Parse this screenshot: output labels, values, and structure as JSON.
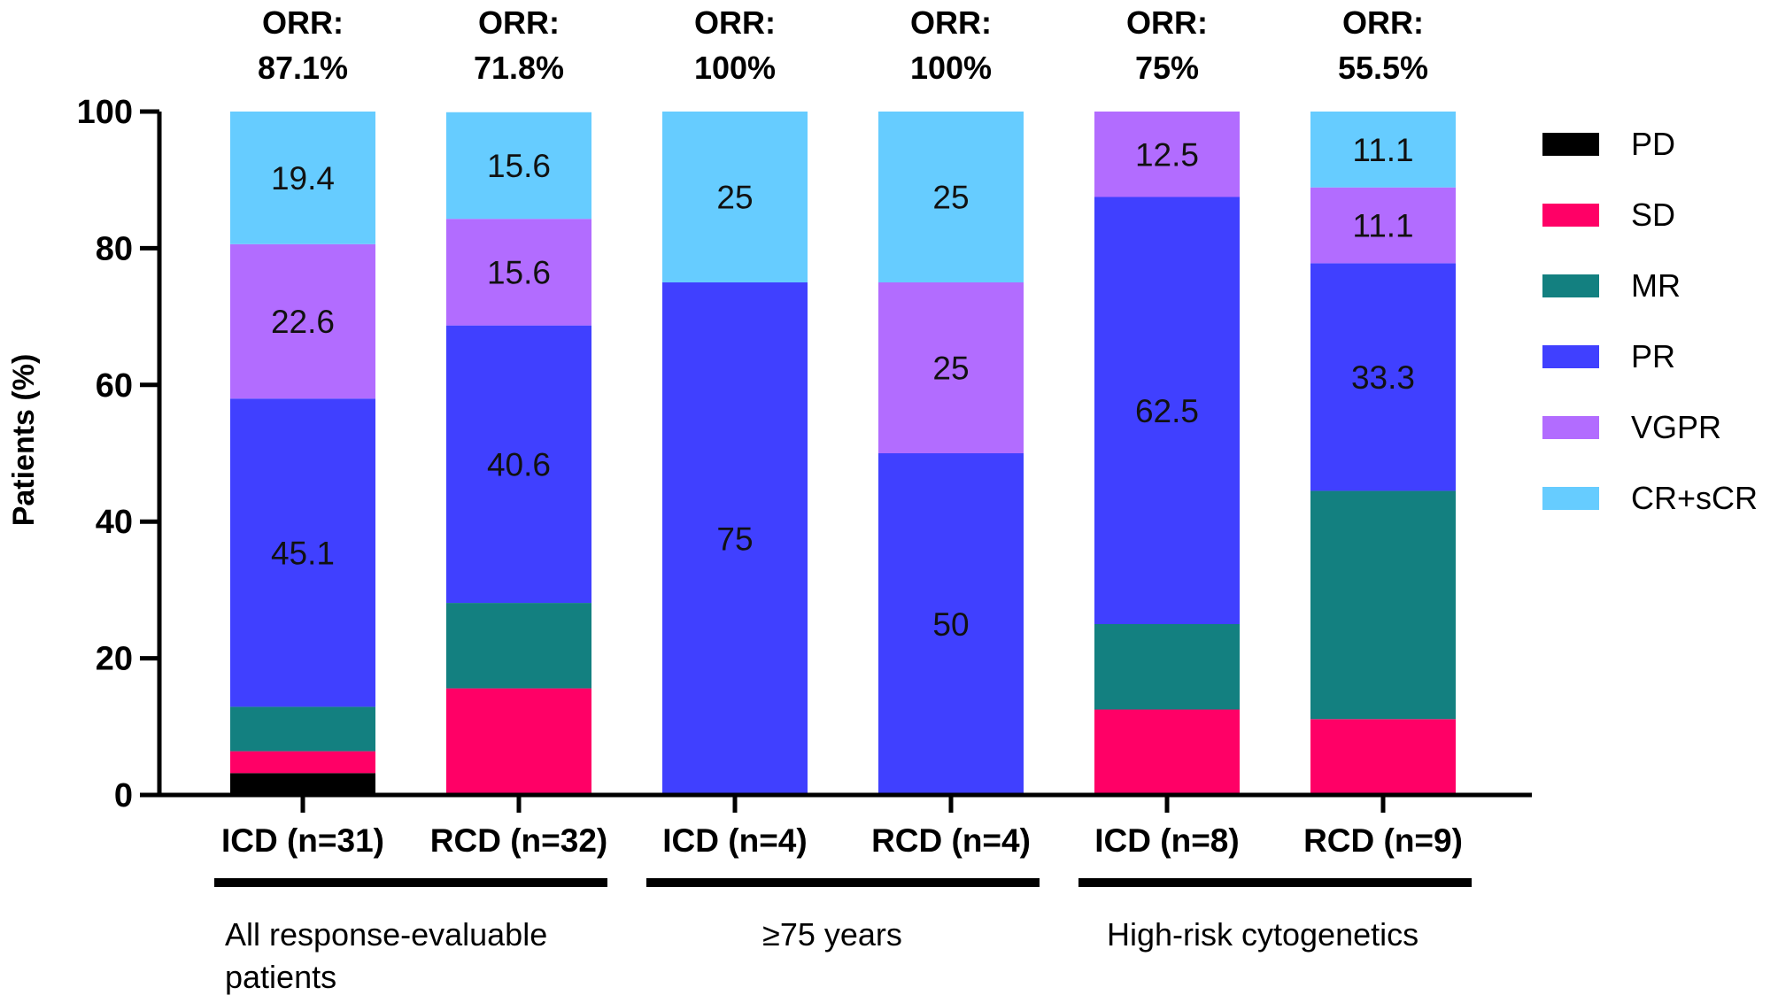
{
  "chart_data": {
    "type": "bar",
    "stacked": true,
    "ylabel": "Patients (%)",
    "ylim": [
      0,
      100
    ],
    "yticks": [
      "0",
      "20",
      "40",
      "60",
      "80",
      "100"
    ],
    "legend_position": "right",
    "categories": [
      "ICD (n=31)",
      "RCD (n=32)",
      "ICD (n=4)",
      "RCD (n=4)",
      "ICD (n=8)",
      "RCD (n=9)"
    ],
    "orr_labels": [
      [
        "ORR:",
        "87.1%"
      ],
      [
        "ORR:",
        "71.8%"
      ],
      [
        "ORR:",
        "100%"
      ],
      [
        "ORR:",
        "100%"
      ],
      [
        "ORR:",
        "75%"
      ],
      [
        "ORR:",
        "55.5%"
      ]
    ],
    "groups": [
      {
        "lines": [
          "All response-evaluable",
          "patients"
        ],
        "bars": [
          0,
          1
        ]
      },
      {
        "lines": [
          "≥75 years"
        ],
        "bars": [
          2,
          3
        ]
      },
      {
        "lines": [
          "High-risk cytogenetics"
        ],
        "bars": [
          4,
          5
        ]
      }
    ],
    "series": [
      {
        "name": "PD",
        "color": "#000000",
        "values": [
          3.2,
          0,
          0,
          0,
          0,
          0
        ],
        "labels": [
          "",
          "",
          "",
          "",
          "",
          ""
        ]
      },
      {
        "name": "SD",
        "color": "#ff0066",
        "values": [
          3.2,
          15.6,
          0,
          0,
          12.5,
          11.1
        ],
        "labels": [
          "",
          "",
          "",
          "",
          "",
          ""
        ]
      },
      {
        "name": "MR",
        "color": "#138080",
        "values": [
          6.5,
          12.5,
          0,
          0,
          12.5,
          33.4
        ],
        "labels": [
          "",
          "",
          "",
          "",
          "",
          ""
        ]
      },
      {
        "name": "PR",
        "color": "#4040ff",
        "values": [
          45.1,
          40.6,
          75,
          50,
          62.5,
          33.3
        ],
        "labels": [
          "45.1",
          "40.6",
          "75",
          "50",
          "62.5",
          "33.3"
        ]
      },
      {
        "name": "VGPR",
        "color": "#b26cff",
        "values": [
          22.6,
          15.6,
          0,
          25,
          12.5,
          11.1
        ],
        "labels": [
          "22.6",
          "15.6",
          "",
          "25",
          "12.5",
          "11.1"
        ]
      },
      {
        "name": "CR+sCR",
        "color": "#66ccff",
        "values": [
          19.4,
          15.6,
          25,
          25,
          0,
          11.1
        ],
        "labels": [
          "19.4",
          "15.6",
          "25",
          "25",
          "",
          "11.1"
        ]
      }
    ]
  }
}
